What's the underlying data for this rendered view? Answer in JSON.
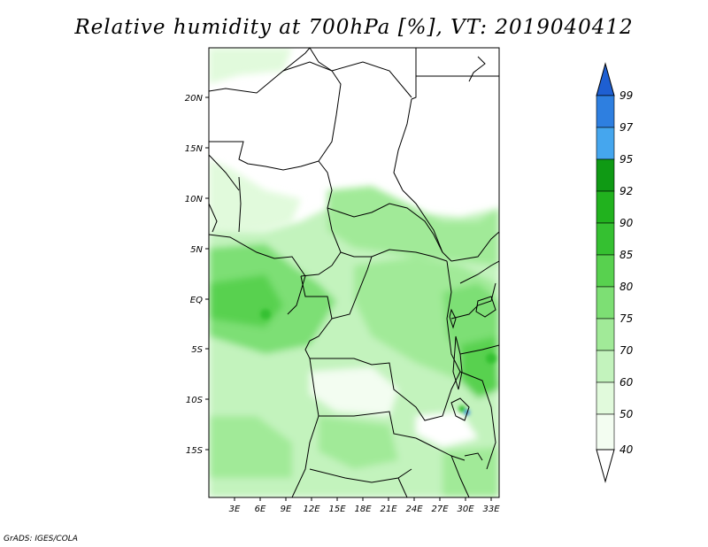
{
  "title": "Relative humidity at 700hPa [%], VT: 2019040412",
  "footer": "GrADS: IGES/COLA",
  "map": {
    "lon_range": [
      0,
      34
    ],
    "lat_range": [
      -20,
      25
    ],
    "lon_ticks": [
      "3E",
      "6E",
      "9E",
      "12E",
      "15E",
      "18E",
      "21E",
      "24E",
      "27E",
      "30E",
      "33E"
    ],
    "lat_ticks": [
      "20N",
      "15N",
      "10N",
      "5N",
      "EQ",
      "5S",
      "10S",
      "15S"
    ]
  },
  "colorbar": {
    "labels": [
      "99",
      "97",
      "95",
      "92",
      "90",
      "85",
      "80",
      "75",
      "70",
      "60",
      "50",
      "40"
    ],
    "colors": [
      "#1e5fd2",
      "#2e7fe0",
      "#45a6ee",
      "#0f9a14",
      "#21b21e",
      "#35c031",
      "#58d14f",
      "#7ddf74",
      "#a1ea98",
      "#c3f3bd",
      "#e1fadc",
      "#f3fdf1",
      "#ffffff"
    ]
  }
}
